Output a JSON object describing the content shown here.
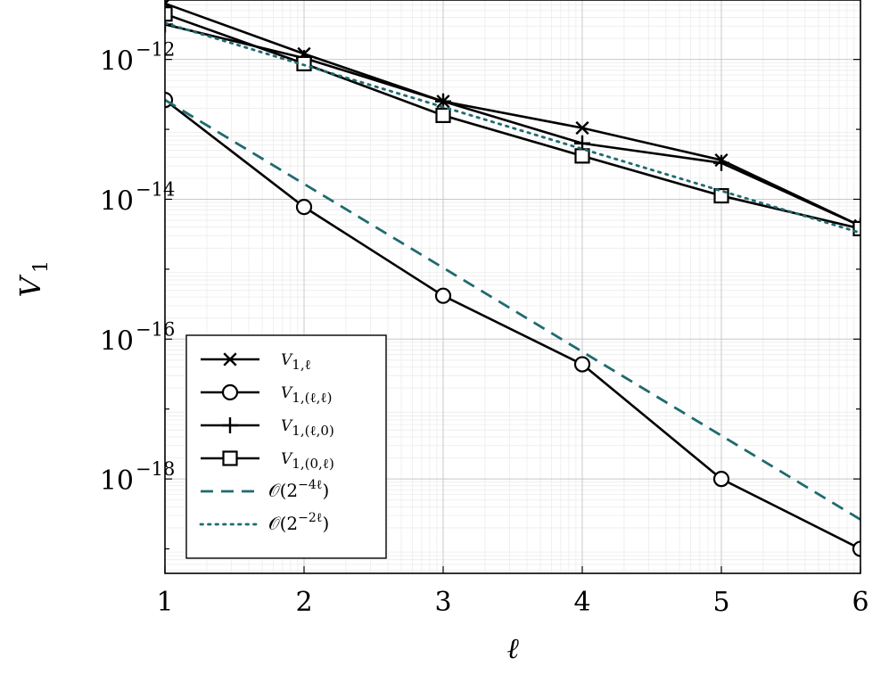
{
  "chart_data": {
    "type": "line",
    "xlabel": "ℓ",
    "ylabel": "V",
    "ylabel_sub": "1",
    "yscale": "log",
    "xlim": [
      1,
      6
    ],
    "ylim_exponent": [
      -19.35,
      -11.15
    ],
    "grid": true,
    "x_ticks": [
      1,
      2,
      3,
      4,
      5,
      6
    ],
    "y_ticks": [
      {
        "base": "10",
        "exponent": "−12",
        "value": -12
      },
      {
        "base": "10",
        "exponent": "−14",
        "value": -14
      },
      {
        "base": "10",
        "exponent": "−16",
        "value": -16
      },
      {
        "base": "10",
        "exponent": "−18",
        "value": -18
      }
    ],
    "legend_position": "bottom-left",
    "series": [
      {
        "legend": "V1,ℓ",
        "marker": "x",
        "style": "solid",
        "color": "#000000",
        "x": [
          1,
          2,
          3,
          4,
          5,
          6
        ],
        "log10_y": [
          -11.2,
          -11.92,
          -12.6,
          -12.98,
          -13.44,
          -14.38
        ]
      },
      {
        "legend": "V1,(ℓ,ℓ)",
        "marker": "circle",
        "style": "solid",
        "color": "#000000",
        "x": [
          1,
          2,
          3,
          4,
          5,
          6
        ],
        "log10_y": [
          -12.58,
          -14.11,
          -15.38,
          -16.36,
          -18.0,
          -19.0
        ]
      },
      {
        "legend": "V1,(ℓ,0)",
        "marker": "plus",
        "style": "solid",
        "color": "#000000",
        "x": [
          1,
          2,
          3,
          4,
          5,
          6
        ],
        "log10_y": [
          -11.5,
          -11.98,
          -12.6,
          -13.2,
          -13.48,
          -14.38
        ]
      },
      {
        "legend": "V1,(0,ℓ)",
        "marker": "square",
        "style": "solid",
        "color": "#000000",
        "x": [
          1,
          2,
          3,
          4,
          5,
          6
        ],
        "log10_y": [
          -11.35,
          -12.06,
          -12.8,
          -13.38,
          -13.95,
          -14.42
        ]
      },
      {
        "legend": "O(2^-4ℓ)",
        "marker": "none",
        "style": "dashed",
        "color": "#1f6b70",
        "x": [
          1,
          2,
          3,
          4,
          5,
          6
        ],
        "log10_y": [
          -12.58,
          -13.78,
          -14.98,
          -16.18,
          -17.38,
          -18.58
        ]
      },
      {
        "legend": "O(2^-2ℓ)",
        "marker": "none",
        "style": "dotted",
        "color": "#1f6b70",
        "x": [
          1,
          2,
          3,
          4,
          5,
          6
        ],
        "log10_y": [
          -11.48,
          -12.08,
          -12.68,
          -13.28,
          -13.88,
          -14.48
        ]
      }
    ],
    "legend_entries": [
      {
        "main": "V",
        "sub": "1,ℓ",
        "sup": ""
      },
      {
        "main": "V",
        "sub": "1,(ℓ,ℓ)",
        "sup": ""
      },
      {
        "main": "V",
        "sub": "1,(ℓ,0)",
        "sup": ""
      },
      {
        "main": "V",
        "sub": "1,(0,ℓ)",
        "sup": ""
      },
      {
        "main": "𝒪",
        "sub": "",
        "sup": "−4ℓ"
      },
      {
        "main": "𝒪",
        "sub": "",
        "sup": "−2ℓ"
      }
    ]
  }
}
